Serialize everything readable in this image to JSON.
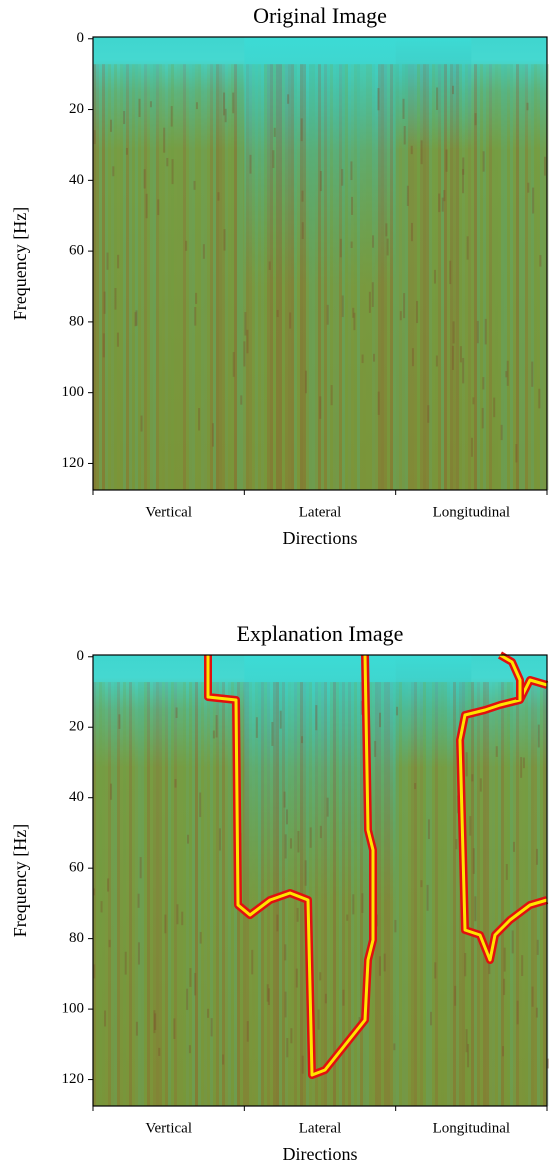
{
  "chart_data": [
    {
      "type": "image",
      "title": "Original Image",
      "xlabel": "Directions",
      "ylabel": "Frequency [Hz]",
      "categories": [
        "Vertical",
        "Lateral",
        "Longitudinal"
      ],
      "ylim": [
        -0.5,
        127.5
      ],
      "yticks": [
        0,
        20,
        40,
        60,
        80,
        100,
        120
      ],
      "inverted_y": true
    },
    {
      "type": "image",
      "title": "Explanation Image",
      "xlabel": "Directions",
      "ylabel": "Frequency [Hz]",
      "categories": [
        "Vertical",
        "Lateral",
        "Longitudinal"
      ],
      "ylim": [
        -0.5,
        127.5
      ],
      "yticks": [
        0,
        20,
        40,
        60,
        80,
        100,
        120
      ],
      "inverted_y": true,
      "explanation": true
    }
  ]
}
